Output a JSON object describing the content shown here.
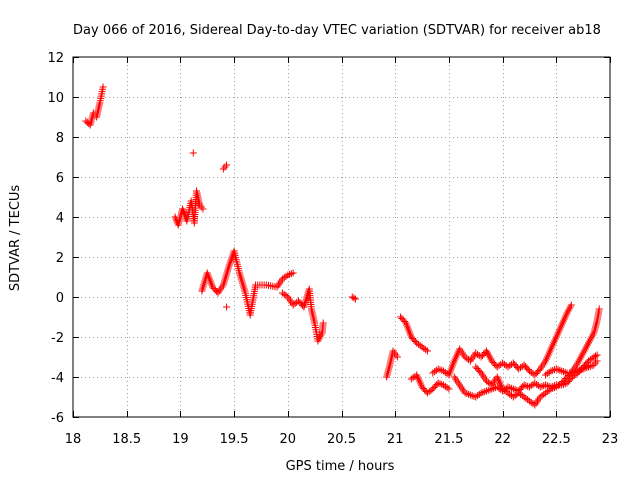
{
  "chart_data": {
    "type": "scatter",
    "title": "Day 066 of 2016, Sidereal Day-to-day VTEC variation (SDTVAR) for receiver ab18",
    "xlabel": "GPS time / hours",
    "ylabel": "SDTVAR / TECUs",
    "xlim": [
      18,
      23
    ],
    "ylim": [
      -6,
      12
    ],
    "xticks": [
      18,
      18.5,
      19,
      19.5,
      20,
      20.5,
      21,
      21.5,
      22,
      22.5,
      23
    ],
    "xtick_labels": [
      "18",
      "18.5",
      "19",
      "19.5",
      "20",
      "20.5",
      "21",
      "21.5",
      "22",
      "22.5",
      "23"
    ],
    "yticks": [
      -6,
      -4,
      -2,
      0,
      2,
      4,
      6,
      8,
      10,
      12
    ],
    "ytick_labels": [
      "-6",
      "-4",
      "-2",
      "0",
      "2",
      "4",
      "6",
      "8",
      "10",
      "12"
    ],
    "grid": true,
    "marker": "+",
    "color": "#ff0000",
    "series": [
      {
        "name": "ab18",
        "segments": [
          [
            [
              18.12,
              8.8
            ],
            [
              18.16,
              8.6
            ],
            [
              18.19,
              9.2
            ],
            [
              18.22,
              9.0
            ],
            [
              18.25,
              9.7
            ],
            [
              18.28,
              10.5
            ]
          ],
          [
            [
              19.12,
              7.2
            ]
          ],
          [
            [
              18.95,
              4.0
            ],
            [
              18.98,
              3.6
            ],
            [
              19.02,
              4.4
            ],
            [
              19.06,
              3.8
            ],
            [
              19.1,
              4.8
            ],
            [
              19.13,
              3.7
            ],
            [
              19.15,
              5.3
            ],
            [
              19.18,
              4.6
            ],
            [
              19.21,
              4.4
            ]
          ],
          [
            [
              19.2,
              0.3
            ],
            [
              19.25,
              1.2
            ],
            [
              19.3,
              0.5
            ],
            [
              19.35,
              0.2
            ],
            [
              19.4,
              0.6
            ],
            [
              19.45,
              1.5
            ],
            [
              19.5,
              2.3
            ],
            [
              19.55,
              1.2
            ],
            [
              19.6,
              0.3
            ],
            [
              19.65,
              -0.9
            ],
            [
              19.7,
              0.6
            ],
            [
              19.8,
              0.6
            ],
            [
              19.9,
              0.5
            ],
            [
              19.95,
              0.9
            ],
            [
              20.0,
              1.1
            ],
            [
              20.05,
              1.2
            ]
          ],
          [
            [
              19.4,
              6.4
            ],
            [
              19.43,
              6.6
            ]
          ],
          [
            [
              19.43,
              -0.5
            ]
          ],
          [
            [
              19.95,
              0.2
            ],
            [
              20.0,
              0.0
            ],
            [
              20.05,
              -0.4
            ],
            [
              20.1,
              -0.2
            ],
            [
              20.15,
              -0.5
            ],
            [
              20.2,
              0.4
            ],
            [
              20.22,
              -0.6
            ],
            [
              20.25,
              -1.3
            ],
            [
              20.28,
              -2.2
            ],
            [
              20.32,
              -1.8
            ],
            [
              20.33,
              -1.3
            ]
          ],
          [
            [
              20.6,
              0.0
            ],
            [
              20.63,
              -0.1
            ]
          ],
          [
            [
              20.92,
              -4.0
            ],
            [
              20.95,
              -3.4
            ],
            [
              20.98,
              -2.7
            ],
            [
              21.02,
              -3.0
            ]
          ],
          [
            [
              21.05,
              -1.0
            ],
            [
              21.1,
              -1.3
            ],
            [
              21.15,
              -2.0
            ],
            [
              21.2,
              -2.3
            ],
            [
              21.25,
              -2.5
            ],
            [
              21.3,
              -2.7
            ]
          ],
          [
            [
              21.15,
              -4.1
            ],
            [
              21.2,
              -3.9
            ],
            [
              21.25,
              -4.5
            ],
            [
              21.3,
              -4.8
            ],
            [
              21.35,
              -4.6
            ],
            [
              21.4,
              -4.3
            ],
            [
              21.45,
              -4.4
            ],
            [
              21.5,
              -4.6
            ]
          ],
          [
            [
              21.35,
              -3.8
            ],
            [
              21.4,
              -3.6
            ],
            [
              21.45,
              -3.7
            ],
            [
              21.5,
              -3.9
            ],
            [
              21.55,
              -3.2
            ],
            [
              21.6,
              -2.6
            ],
            [
              21.65,
              -3.0
            ],
            [
              21.7,
              -3.2
            ],
            [
              21.75,
              -2.8
            ],
            [
              21.8,
              -3.0
            ],
            [
              21.85,
              -2.7
            ],
            [
              21.9,
              -3.2
            ],
            [
              21.95,
              -3.5
            ],
            [
              22.0,
              -3.3
            ],
            [
              22.05,
              -3.5
            ],
            [
              22.1,
              -3.3
            ],
            [
              22.15,
              -3.6
            ],
            [
              22.2,
              -3.4
            ],
            [
              22.25,
              -3.7
            ],
            [
              22.3,
              -3.9
            ],
            [
              22.35,
              -3.6
            ],
            [
              22.4,
              -3.2
            ],
            [
              22.45,
              -2.6
            ],
            [
              22.5,
              -2.0
            ],
            [
              22.55,
              -1.4
            ],
            [
              22.6,
              -0.8
            ],
            [
              22.64,
              -0.4
            ]
          ],
          [
            [
              21.55,
              -4.0
            ],
            [
              21.6,
              -4.4
            ],
            [
              21.65,
              -4.8
            ],
            [
              21.7,
              -4.9
            ],
            [
              21.75,
              -5.0
            ],
            [
              21.8,
              -4.8
            ],
            [
              21.85,
              -4.7
            ],
            [
              21.9,
              -4.6
            ],
            [
              21.95,
              -4.5
            ],
            [
              22.0,
              -4.7
            ],
            [
              22.05,
              -4.5
            ],
            [
              22.1,
              -4.6
            ],
            [
              22.15,
              -4.7
            ],
            [
              22.2,
              -4.4
            ],
            [
              22.25,
              -4.5
            ],
            [
              22.3,
              -4.3
            ],
            [
              22.35,
              -4.5
            ],
            [
              22.4,
              -4.4
            ],
            [
              22.45,
              -4.5
            ],
            [
              22.5,
              -4.4
            ],
            [
              22.55,
              -4.4
            ],
            [
              22.6,
              -4.3
            ],
            [
              22.65,
              -4.0
            ],
            [
              22.7,
              -3.8
            ],
            [
              22.75,
              -3.5
            ],
            [
              22.8,
              -3.2
            ],
            [
              22.85,
              -3.0
            ],
            [
              22.88,
              -2.9
            ]
          ],
          [
            [
              21.75,
              -3.5
            ],
            [
              21.8,
              -3.8
            ],
            [
              21.85,
              -4.2
            ],
            [
              21.9,
              -4.4
            ],
            [
              21.95,
              -4.0
            ],
            [
              22.0,
              -4.6
            ],
            [
              22.05,
              -4.8
            ],
            [
              22.1,
              -5.0
            ],
            [
              22.15,
              -4.8
            ],
            [
              22.2,
              -5.0
            ],
            [
              22.25,
              -5.2
            ],
            [
              22.3,
              -5.4
            ],
            [
              22.35,
              -5.0
            ],
            [
              22.4,
              -4.8
            ],
            [
              22.45,
              -4.6
            ],
            [
              22.5,
              -4.5
            ],
            [
              22.55,
              -4.3
            ],
            [
              22.6,
              -4.0
            ],
            [
              22.65,
              -3.7
            ],
            [
              22.7,
              -3.3
            ],
            [
              22.75,
              -2.8
            ],
            [
              22.8,
              -2.3
            ],
            [
              22.85,
              -1.8
            ],
            [
              22.88,
              -1.2
            ],
            [
              22.9,
              -0.6
            ]
          ],
          [
            [
              22.4,
              -3.9
            ],
            [
              22.45,
              -3.7
            ],
            [
              22.5,
              -3.6
            ],
            [
              22.55,
              -3.7
            ],
            [
              22.6,
              -3.8
            ],
            [
              22.65,
              -3.8
            ],
            [
              22.7,
              -3.7
            ],
            [
              22.75,
              -3.6
            ],
            [
              22.8,
              -3.5
            ],
            [
              22.85,
              -3.4
            ],
            [
              22.88,
              -3.2
            ]
          ]
        ]
      }
    ]
  }
}
